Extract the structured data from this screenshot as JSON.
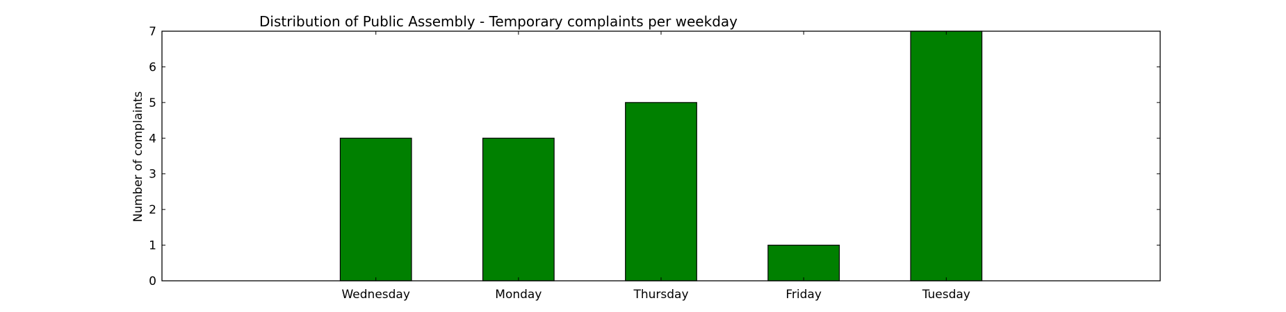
{
  "chart_data": {
    "type": "bar",
    "title": "Distribution of  Public Assembly - Temporary complaints per weekday",
    "xlabel": "",
    "ylabel": "Number of complaints",
    "categories": [
      "Wednesday",
      "Monday",
      "Thursday",
      "Friday",
      "Tuesday"
    ],
    "values": [
      4,
      4,
      5,
      1,
      7
    ],
    "ylim": [
      0,
      7
    ],
    "yticks": [
      0,
      1,
      2,
      3,
      4,
      5,
      6,
      7
    ],
    "bar_color": "#008000",
    "grid": false,
    "legend": "none"
  }
}
